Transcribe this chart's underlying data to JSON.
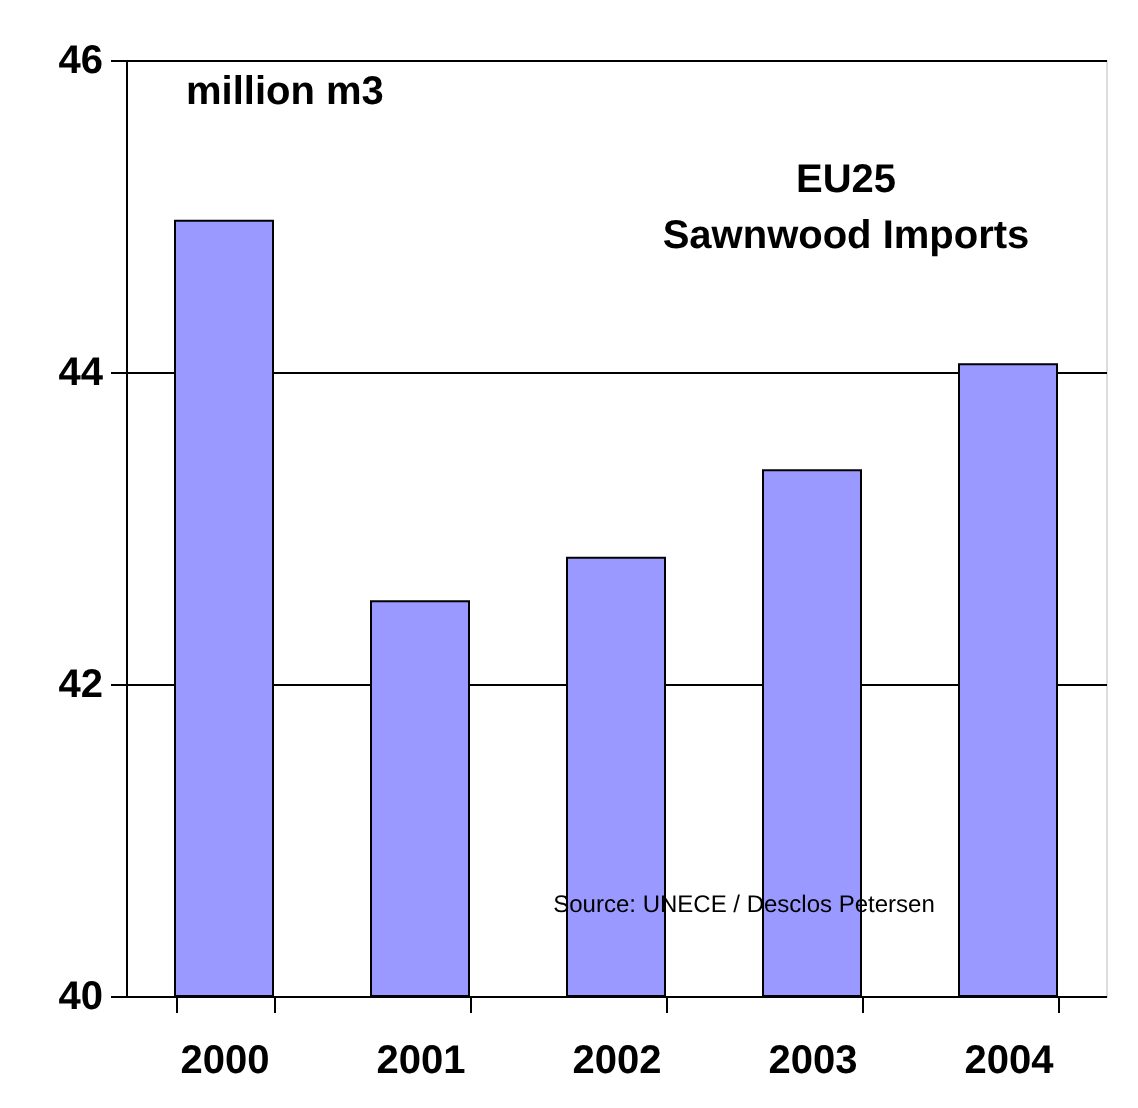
{
  "chart_data": {
    "type": "bar",
    "title": "EU25\nSawnwood Imports",
    "categories": [
      "2000",
      "2001",
      "2002",
      "2003",
      "2004"
    ],
    "values": [
      44.97,
      42.53,
      42.81,
      43.37,
      44.05
    ],
    "color": "#9999ff",
    "ylim": [
      40,
      46
    ],
    "yticks": [
      40,
      42,
      44,
      46
    ],
    "grid": "y",
    "annotations": [
      "million m3",
      "Source: UNECE / Desclos Petersen"
    ]
  }
}
